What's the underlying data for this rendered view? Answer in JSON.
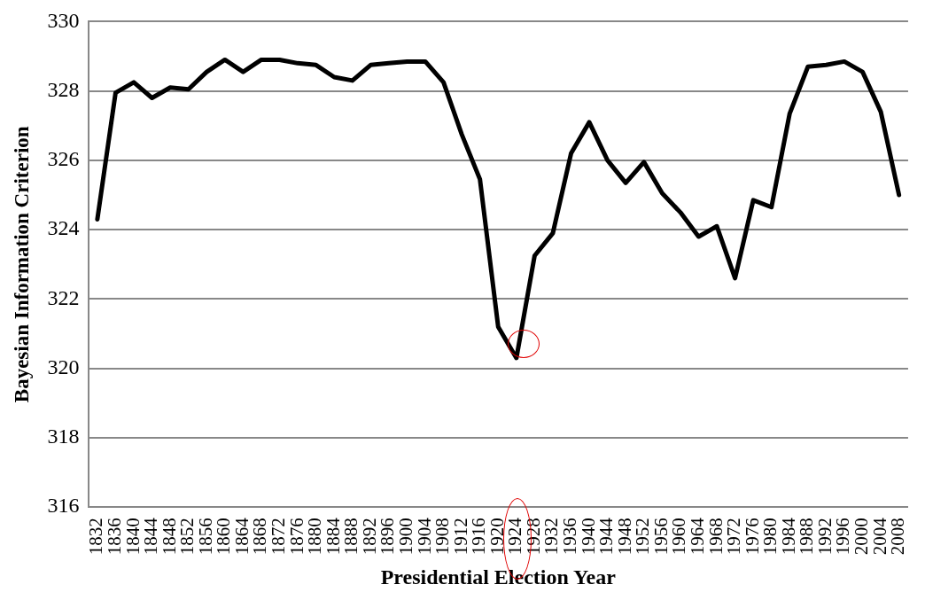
{
  "chart_data": {
    "type": "line",
    "xlabel": "Presidential Election Year",
    "ylabel": "Bayesian Information Criterion",
    "categories": [
      "1832",
      "1836",
      "1840",
      "1844",
      "1848",
      "1852",
      "1856",
      "1860",
      "1864",
      "1868",
      "1872",
      "1876",
      "1880",
      "1884",
      "1888",
      "1892",
      "1896",
      "1900",
      "1904",
      "1908",
      "1912",
      "1916",
      "1920",
      "1924",
      "1928",
      "1932",
      "1936",
      "1940",
      "1944",
      "1948",
      "1952",
      "1956",
      "1960",
      "1964",
      "1968",
      "1972",
      "1976",
      "1980",
      "1984",
      "1988",
      "1992",
      "1996",
      "2000",
      "2004",
      "2008"
    ],
    "series": [
      {
        "color": "#000000",
        "values": [
          324.3,
          327.95,
          328.25,
          327.8,
          328.1,
          328.05,
          328.55,
          328.9,
          328.55,
          328.9,
          328.9,
          328.8,
          328.75,
          328.4,
          328.3,
          328.75,
          328.8,
          328.85,
          328.85,
          328.25,
          326.75,
          325.45,
          321.2,
          320.3,
          323.25,
          323.9,
          326.2,
          327.1,
          326.0,
          325.35,
          325.95,
          325.05,
          324.5,
          323.8,
          324.1,
          322.6,
          324.85,
          324.65,
          327.35,
          328.7,
          328.75,
          328.85,
          328.55,
          327.4,
          325.0
        ]
      }
    ],
    "ylim": [
      316,
      330
    ],
    "yticks": [
      316,
      318,
      320,
      322,
      324,
      326,
      328,
      330
    ],
    "grid": "y",
    "legend": false,
    "marker": "none",
    "line_style": "solid"
  }
}
